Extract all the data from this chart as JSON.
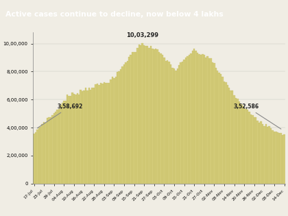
{
  "title": "Active cases continue to decline, now below 4 lakhs",
  "title_bg": "#1e3461",
  "title_fg": "#ffffff",
  "bar_color": "#d4cc7a",
  "bar_edge_color": "#bfb85a",
  "background_color": "#f0ede4",
  "chart_bg": "#f0ede4",
  "yticks": [
    0,
    200000,
    400000,
    600000,
    800000,
    1000000
  ],
  "ytick_labels": [
    "0",
    "2,00,000",
    "4,00,000",
    "6,00,000",
    "8,00,000",
    "10,00,000"
  ],
  "ylim": [
    0,
    1080000
  ],
  "x_labels": [
    "17-Jul",
    "23-Jul",
    "29-Jul",
    "04-Aug",
    "10-Aug",
    "16-Aug",
    "22-Aug",
    "28-Aug",
    "03-Sep",
    "09-Sep",
    "15-Sep",
    "21-Sep",
    "27-Sep",
    "03-Oct",
    "09-Oct",
    "15-Oct",
    "21-Oct",
    "27-Oct",
    "02-Nov",
    "08-Nov",
    "14-Nov",
    "20-Nov",
    "26-Nov",
    "02-Dec",
    "08-Dec",
    "14-Dec"
  ],
  "annotation_peak_text": "10,03,299",
  "annotation_left_text": "3,58,692",
  "annotation_right_text": "3,52,586"
}
